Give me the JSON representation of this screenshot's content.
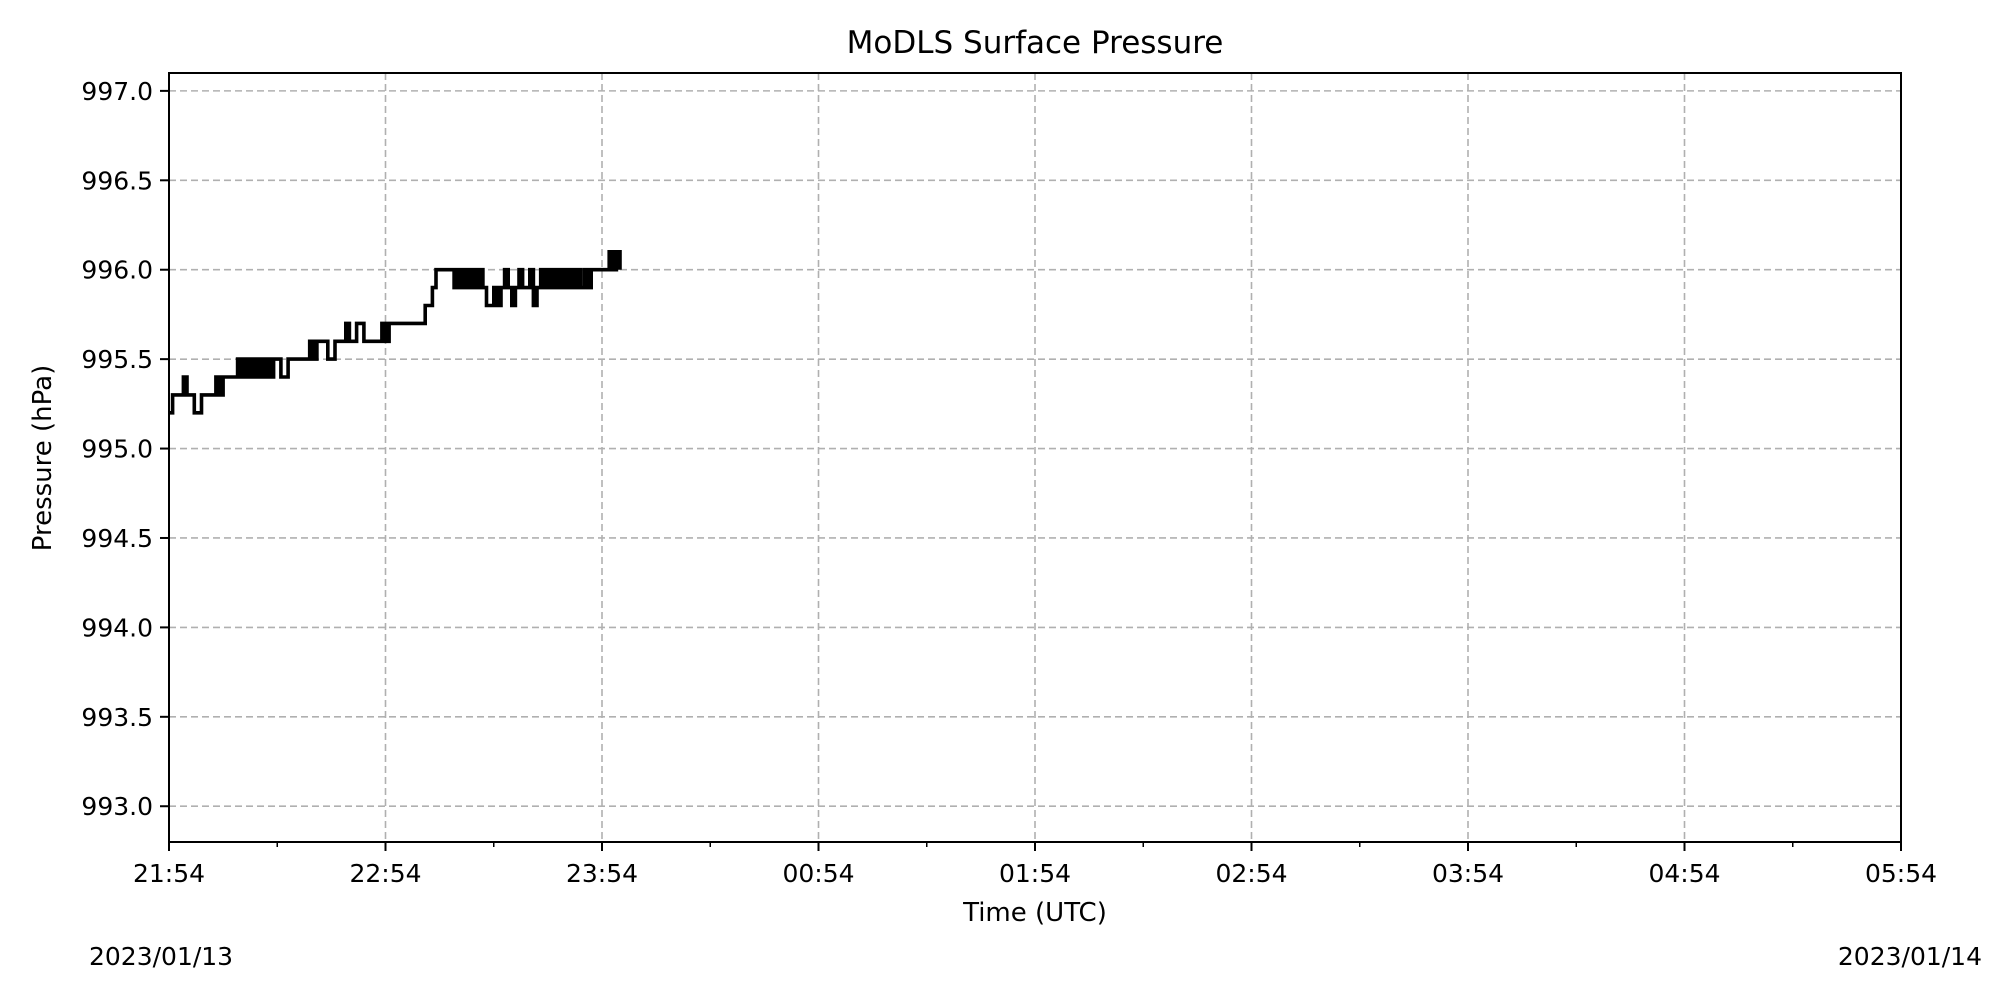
{
  "chart_data": {
    "type": "line",
    "title": "MoDLS Surface Pressure",
    "xlabel": "Time (UTC)",
    "ylabel": "Pressure (hPa)",
    "x_ticks": [
      "21:54",
      "22:54",
      "23:54",
      "00:54",
      "01:54",
      "02:54",
      "03:54",
      "04:54",
      "05:54"
    ],
    "xlim": [
      "2023-01-13T21:54",
      "2023-01-14T05:54"
    ],
    "ylim": [
      992.8,
      997.1
    ],
    "y_ticks": [
      "993.0",
      "993.5",
      "994.0",
      "994.5",
      "995.0",
      "995.5",
      "996.0",
      "996.5",
      "997.0"
    ],
    "grid": true,
    "date_start": "2023/01/13",
    "date_end": "2023/01/14",
    "line_color": "#000000",
    "series": [
      {
        "x": [
          "21:54",
          "21:55",
          "21:56",
          "21:58",
          "21:59",
          "22:00",
          "22:01",
          "22:03",
          "22:05",
          "22:07",
          "22:08",
          "22:09",
          "22:10",
          "22:11",
          "22:12",
          "22:13",
          "22:14",
          "22:15",
          "22:16",
          "22:17",
          "22:18",
          "22:19",
          "22:20",
          "22:21",
          "22:22",
          "22:23",
          "22:25",
          "22:27",
          "22:29",
          "22:33",
          "22:34",
          "22:35",
          "22:36",
          "22:38",
          "22:39",
          "22:40",
          "22:41",
          "22:43",
          "22:44",
          "22:45",
          "22:46",
          "22:48",
          "22:52",
          "22:53",
          "22:54",
          "22:55",
          "22:56",
          "22:57",
          "23:05",
          "23:06",
          "23:07",
          "23:08",
          "23:13",
          "23:14",
          "23:15",
          "23:16",
          "23:17",
          "23:18",
          "23:19",
          "23:20",
          "23:21",
          "23:22",
          "23:24",
          "23:25",
          "23:26",
          "23:27",
          "23:28",
          "23:29",
          "23:30",
          "23:31",
          "23:32",
          "23:33",
          "23:34",
          "23:35",
          "23:36",
          "23:37",
          "23:38",
          "23:39",
          "23:40",
          "23:41",
          "23:42",
          "23:43",
          "23:44",
          "23:45",
          "23:46",
          "23:47",
          "23:48",
          "23:49",
          "23:50",
          "23:51",
          "23:55",
          "23:56",
          "23:57",
          "23:58",
          "23:59"
        ],
        "y": [
          995.2,
          995.3,
          995.3,
          995.4,
          995.3,
          995.3,
          995.2,
          995.3,
          995.3,
          995.4,
          995.3,
          995.4,
          995.4,
          995.4,
          995.4,
          995.5,
          995.4,
          995.5,
          995.4,
          995.5,
          995.4,
          995.5,
          995.4,
          995.5,
          995.4,
          995.5,
          995.4,
          995.5,
          995.5,
          995.6,
          995.5,
          995.6,
          995.6,
          995.5,
          995.5,
          995.6,
          995.6,
          995.7,
          995.6,
          995.6,
          995.7,
          995.6,
          995.6,
          995.7,
          995.6,
          995.7,
          995.7,
          995.7,
          995.8,
          995.8,
          995.9,
          996.0,
          995.9,
          996.0,
          995.9,
          996.0,
          995.9,
          996.0,
          995.9,
          996.0,
          995.9,
          995.8,
          995.9,
          995.8,
          995.9,
          996.0,
          995.9,
          995.8,
          995.9,
          996.0,
          995.9,
          995.9,
          996.0,
          995.8,
          995.9,
          996.0,
          995.9,
          996.0,
          995.9,
          996.0,
          995.9,
          996.0,
          995.9,
          996.0,
          995.9,
          996.0,
          995.9,
          996.0,
          995.9,
          996.0,
          996.0,
          996.1,
          996.0,
          996.1,
          996.0
        ]
      }
    ]
  }
}
